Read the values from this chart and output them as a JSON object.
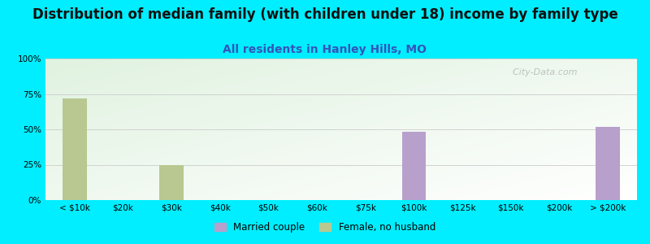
{
  "title": "Distribution of median family (with children under 18) income by family type",
  "subtitle": "All residents in Hanley Hills, MO",
  "categories": [
    "< $10k",
    "$20k",
    "$30k",
    "$40k",
    "$50k",
    "$60k",
    "$75k",
    "$100k",
    "$125k",
    "$150k",
    "$200k",
    "> $200k"
  ],
  "married_couple": [
    0,
    0,
    0,
    0,
    0,
    0,
    0,
    48,
    0,
    0,
    0,
    52
  ],
  "female_no_husband": [
    72,
    0,
    25,
    0,
    0,
    0,
    0,
    0,
    0,
    0,
    0,
    0
  ],
  "married_color": "#b8a0cc",
  "female_color": "#b8c890",
  "background_color": "#00eeff",
  "title_fontsize": 12,
  "title_color": "#111111",
  "subtitle_fontsize": 10,
  "subtitle_color": "#3355bb",
  "bar_width": 0.5,
  "ylim": [
    0,
    100
  ],
  "yticks": [
    0,
    25,
    50,
    75,
    100
  ],
  "ytick_labels": [
    "0%",
    "25%",
    "50%",
    "75%",
    "100%"
  ],
  "watermark": "  City-Data.com",
  "legend_married": "Married couple",
  "legend_female": "Female, no husband",
  "grid_color": "#cccccc",
  "tick_label_fontsize": 7.5
}
